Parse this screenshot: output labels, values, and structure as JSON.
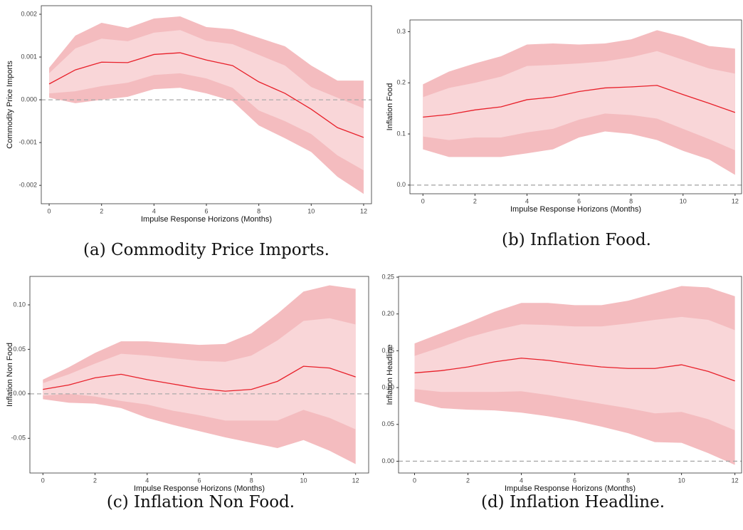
{
  "chart_data": [
    {
      "type": "line",
      "caption": "(a) Commodity Price Imports.",
      "xlabel": "Impulse Response Horizons (Months)",
      "ylabel": "Commodity Price Imports",
      "x": [
        0,
        1,
        2,
        3,
        4,
        5,
        6,
        7,
        8,
        9,
        10,
        11,
        12
      ],
      "xlim": [
        -0.3,
        12.3
      ],
      "xticks": [
        0,
        2,
        4,
        6,
        8,
        10,
        12
      ],
      "ylim": [
        -0.00243,
        0.0022
      ],
      "yticks": [
        0.002,
        0.001,
        {
          "value": 0,
          "label": "0.000"
        },
        -0.001,
        -0.002
      ],
      "hline": 0,
      "bands": [
        {
          "color": "#f4bcbf",
          "upper": [
            0.00075,
            0.0015,
            0.0018,
            0.00168,
            0.0019,
            0.00195,
            0.0017,
            0.00165,
            0.00145,
            0.00125,
            0.0008,
            0.00045,
            0.00045
          ],
          "lower": [
            5e-05,
            -8e-05,
            0,
            7e-05,
            0.00025,
            0.00028,
            0.00015,
            -3e-05,
            -0.0006,
            -0.0009,
            -0.00122,
            -0.0018,
            -0.0022
          ]
        },
        {
          "color": "#f9d6d8",
          "upper": [
            0.00062,
            0.0012,
            0.00143,
            0.00137,
            0.00157,
            0.00163,
            0.00138,
            0.0013,
            0.00105,
            0.0008,
            0.0003,
            5e-05,
            -0.0002
          ],
          "lower": [
            0.00015,
            0.0002,
            0.00032,
            0.0004,
            0.00058,
            0.00062,
            0.0005,
            0.00028,
            -0.00025,
            -0.0005,
            -0.0008,
            -0.0013,
            -0.00165
          ]
        }
      ],
      "series": [
        {
          "color": "#e8202a",
          "values": [
            0.00037,
            0.0007,
            0.00088,
            0.00087,
            0.00106,
            0.0011,
            0.00093,
            0.0008,
            0.00042,
            0.00015,
            -0.00022,
            -0.00065,
            -0.00088
          ]
        }
      ]
    },
    {
      "type": "line",
      "caption": "(b) Inflation Food.",
      "xlabel": "Impulse Response Horizons (Months)",
      "ylabel": "Inflation Food",
      "x": [
        0,
        1,
        2,
        3,
        4,
        5,
        6,
        7,
        8,
        9,
        10,
        11,
        12
      ],
      "xlim": [
        -0.5,
        12.25
      ],
      "xticks": [
        0,
        2,
        4,
        6,
        8,
        10,
        12
      ],
      "ylim": [
        -0.017,
        0.323
      ],
      "yticks": [
        {
          "value": 0,
          "label": "0.0"
        },
        0.1,
        0.2,
        0.3
      ],
      "hline": 0,
      "bands": [
        {
          "color": "#f4bcbf",
          "upper": [
            0.197,
            0.222,
            0.238,
            0.252,
            0.275,
            0.277,
            0.275,
            0.277,
            0.285,
            0.303,
            0.29,
            0.272,
            0.267
          ],
          "lower": [
            0.07,
            0.055,
            0.055,
            0.055,
            0.062,
            0.07,
            0.093,
            0.105,
            0.1,
            0.088,
            0.067,
            0.05,
            0.02
          ]
        },
        {
          "color": "#f9d6d8",
          "upper": [
            0.172,
            0.19,
            0.2,
            0.212,
            0.233,
            0.235,
            0.238,
            0.242,
            0.25,
            0.262,
            0.245,
            0.228,
            0.218
          ],
          "lower": [
            0.095,
            0.088,
            0.093,
            0.093,
            0.103,
            0.11,
            0.128,
            0.14,
            0.137,
            0.13,
            0.11,
            0.09,
            0.068
          ]
        }
      ],
      "series": [
        {
          "color": "#e8202a",
          "values": [
            0.133,
            0.138,
            0.147,
            0.153,
            0.167,
            0.172,
            0.183,
            0.19,
            0.192,
            0.195,
            0.177,
            0.16,
            0.142
          ]
        }
      ]
    },
    {
      "type": "line",
      "caption": "(c) Inflation Non Food.",
      "xlabel": "Impulse Response Horizons (Months)",
      "ylabel": "Inflation Non Food",
      "x": [
        0,
        1,
        2,
        3,
        4,
        5,
        6,
        7,
        8,
        9,
        10,
        11,
        12
      ],
      "xlim": [
        -0.5,
        12.5
      ],
      "xticks": [
        0,
        2,
        4,
        6,
        8,
        10,
        12
      ],
      "ylim": [
        -0.089,
        0.132
      ],
      "yticks": [
        {
          "value": 0.1,
          "label": "0.10"
        },
        0.05,
        {
          "value": 0,
          "label": "0.00"
        },
        -0.05
      ],
      "hline": 0,
      "bands": [
        {
          "color": "#f4bcbf",
          "upper": [
            0.016,
            0.03,
            0.046,
            0.059,
            0.059,
            0.057,
            0.055,
            0.056,
            0.068,
            0.09,
            0.115,
            0.122,
            0.118
          ],
          "lower": [
            -0.006,
            -0.01,
            -0.011,
            -0.016,
            -0.027,
            -0.035,
            -0.042,
            -0.049,
            -0.055,
            -0.061,
            -0.052,
            -0.064,
            -0.079
          ]
        },
        {
          "color": "#f9d6d8",
          "upper": [
            0.012,
            0.022,
            0.034,
            0.045,
            0.043,
            0.04,
            0.037,
            0.036,
            0.043,
            0.06,
            0.082,
            0.085,
            0.078
          ],
          "lower": [
            -0.002,
            0,
            -0.003,
            -0.008,
            -0.012,
            -0.019,
            -0.024,
            -0.03,
            -0.03,
            -0.03,
            -0.018,
            -0.027,
            -0.04
          ]
        }
      ],
      "series": [
        {
          "color": "#e8202a",
          "values": [
            0.005,
            0.01,
            0.018,
            0.022,
            0.016,
            0.011,
            0.006,
            0.003,
            0.005,
            0.014,
            0.031,
            0.029,
            0.019
          ]
        }
      ]
    },
    {
      "type": "line",
      "caption": "(d) Inflation Headline.",
      "xlabel": "Impulse Response Horizons (Months)",
      "ylabel": "Inflation Headline",
      "x": [
        0,
        1,
        2,
        3,
        4,
        5,
        6,
        7,
        8,
        9,
        10,
        11,
        12
      ],
      "xlim": [
        -0.6,
        12.25
      ],
      "xticks": [
        0,
        2,
        4,
        6,
        8,
        10,
        12
      ],
      "ylim": [
        -0.016,
        0.251
      ],
      "yticks": [
        0.25,
        {
          "value": 0.2,
          "label": "0.20"
        },
        0.15,
        {
          "value": 0.1,
          "label": "0.10"
        },
        0.05,
        {
          "value": 0,
          "label": "0.00"
        }
      ],
      "hline": 0,
      "bands": [
        {
          "color": "#f4bcbf",
          "upper": [
            0.16,
            0.174,
            0.188,
            0.203,
            0.215,
            0.215,
            0.212,
            0.212,
            0.218,
            0.228,
            0.238,
            0.236,
            0.224
          ],
          "lower": [
            0.081,
            0.072,
            0.07,
            0.069,
            0.066,
            0.061,
            0.055,
            0.047,
            0.038,
            0.026,
            0.025,
            0.011,
            -0.005
          ]
        },
        {
          "color": "#f9d6d8",
          "upper": [
            0.143,
            0.155,
            0.168,
            0.178,
            0.186,
            0.185,
            0.183,
            0.183,
            0.187,
            0.192,
            0.196,
            0.192,
            0.178
          ],
          "lower": [
            0.098,
            0.094,
            0.094,
            0.094,
            0.095,
            0.09,
            0.084,
            0.078,
            0.072,
            0.065,
            0.067,
            0.057,
            0.042
          ]
        }
      ],
      "series": [
        {
          "color": "#e8202a",
          "values": [
            0.12,
            0.123,
            0.128,
            0.135,
            0.14,
            0.137,
            0.132,
            0.128,
            0.126,
            0.126,
            0.131,
            0.122,
            0.109
          ]
        }
      ]
    }
  ]
}
